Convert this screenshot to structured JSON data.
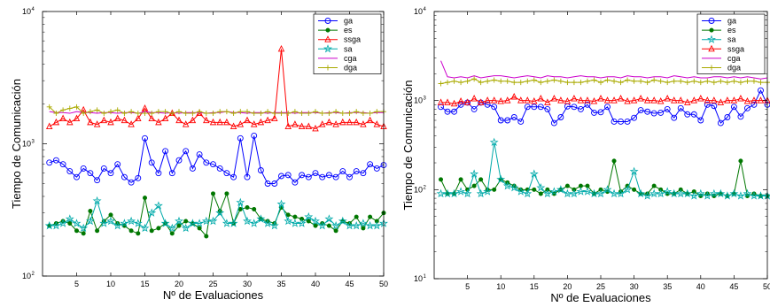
{
  "chart_data": [
    {
      "type": "line",
      "xlabel": "Nº de Evaluaciones",
      "ylabel": "Tiempo de Comunicación",
      "xlim": [
        0,
        50
      ],
      "ylim": [
        100,
        10000
      ],
      "yscale": "log",
      "x_ticks": [
        5,
        10,
        15,
        20,
        25,
        30,
        35,
        40,
        45,
        50
      ],
      "y_ticks": [
        {
          "value": 100,
          "base": "10",
          "exp": "2"
        },
        {
          "value": 1000,
          "base": "10",
          "exp": "3"
        },
        {
          "value": 10000,
          "base": "10",
          "exp": "4"
        }
      ],
      "grid": false,
      "legend_position": "top-right",
      "x": [
        1,
        2,
        3,
        4,
        5,
        6,
        7,
        8,
        9,
        10,
        11,
        12,
        13,
        14,
        15,
        16,
        17,
        18,
        19,
        20,
        21,
        22,
        23,
        24,
        25,
        26,
        27,
        28,
        29,
        30,
        31,
        32,
        33,
        34,
        35,
        36,
        37,
        38,
        39,
        40,
        41,
        42,
        43,
        44,
        45,
        46,
        47,
        48,
        49,
        50
      ],
      "series": [
        {
          "name": "ga",
          "color": "#0000ff",
          "marker": "circle",
          "values": [
            720,
            750,
            700,
            620,
            560,
            650,
            600,
            530,
            650,
            600,
            700,
            560,
            510,
            550,
            1100,
            720,
            600,
            880,
            600,
            750,
            880,
            650,
            830,
            720,
            700,
            650,
            600,
            560,
            1100,
            560,
            1150,
            630,
            500,
            500,
            570,
            580,
            510,
            580,
            560,
            600,
            560,
            580,
            560,
            620,
            560,
            620,
            600,
            700,
            650,
            690
          ]
        },
        {
          "name": "es",
          "color": "#007700",
          "marker": "star",
          "values": [
            240,
            250,
            260,
            250,
            220,
            210,
            310,
            220,
            260,
            290,
            250,
            240,
            220,
            210,
            390,
            220,
            230,
            250,
            210,
            240,
            260,
            250,
            230,
            200,
            420,
            310,
            420,
            250,
            320,
            330,
            320,
            270,
            260,
            250,
            330,
            290,
            280,
            270,
            260,
            240,
            250,
            240,
            220,
            260,
            250,
            280,
            230,
            280,
            260,
            300
          ]
        },
        {
          "name": "ssga",
          "color": "#ff0000",
          "marker": "triangle",
          "values": [
            1350,
            1450,
            1550,
            1450,
            1550,
            1800,
            1450,
            1400,
            1500,
            1450,
            1550,
            1500,
            1400,
            1550,
            1850,
            1550,
            1450,
            1550,
            1700,
            1500,
            1400,
            1500,
            1700,
            1500,
            1450,
            1450,
            1450,
            1350,
            1400,
            1500,
            1400,
            1450,
            1500,
            1550,
            5200,
            1350,
            1400,
            1350,
            1350,
            1300,
            1400,
            1450,
            1400,
            1450,
            1450,
            1450,
            1400,
            1500,
            1400,
            1350
          ]
        },
        {
          "name": "sa",
          "color": "#00aaaa",
          "marker": "pentagram",
          "values": [
            240,
            240,
            250,
            270,
            250,
            230,
            260,
            370,
            250,
            260,
            240,
            250,
            260,
            250,
            230,
            300,
            340,
            250,
            230,
            260,
            230,
            250,
            250,
            260,
            260,
            300,
            250,
            250,
            360,
            260,
            250,
            270,
            250,
            240,
            350,
            260,
            250,
            250,
            280,
            260,
            240,
            270,
            240,
            260,
            240,
            240,
            250,
            240,
            240,
            250
          ]
        },
        {
          "name": "cga",
          "color": "#cc00cc",
          "marker": "none",
          "values": [
            1750,
            1720,
            1720,
            1700,
            1750,
            1720,
            1720,
            1700,
            1720,
            1720,
            1700,
            1720,
            1720,
            1700,
            1750,
            1720,
            1720,
            1700,
            1720,
            1700,
            1720,
            1720,
            1720,
            1700,
            1720,
            1720,
            1750,
            1720,
            1720,
            1700,
            1720,
            1720,
            1700,
            1720,
            1720,
            1720,
            1700,
            1720,
            1720,
            1720,
            1700,
            1720,
            1720,
            1700,
            1720,
            1720,
            1720,
            1700,
            1720,
            1720
          ]
        },
        {
          "name": "dga",
          "color": "#aaaa00",
          "marker": "plus",
          "values": [
            1900,
            1700,
            1800,
            1850,
            1900,
            1700,
            1750,
            1800,
            1700,
            1750,
            1800,
            1700,
            1750,
            1700,
            1700,
            1700,
            1750,
            1750,
            1700,
            1750,
            1700,
            1700,
            1750,
            1700,
            1700,
            1750,
            1750,
            1700,
            1750,
            1750,
            1700,
            1700,
            1750,
            1700,
            1700,
            1700,
            1750,
            1700,
            1700,
            1750,
            1700,
            1700,
            1750,
            1700,
            1700,
            1750,
            1700,
            1700,
            1750,
            1750
          ]
        }
      ]
    },
    {
      "type": "line",
      "xlabel": "Nº de Evaluaciones",
      "ylabel": "Tiempo de Comunicación",
      "xlim": [
        0,
        50
      ],
      "ylim": [
        10,
        10000
      ],
      "yscale": "log",
      "x_ticks": [
        5,
        10,
        15,
        20,
        25,
        30,
        35,
        40,
        45,
        50
      ],
      "y_ticks": [
        {
          "value": 10,
          "base": "10",
          "exp": "1"
        },
        {
          "value": 100,
          "base": "10",
          "exp": "2"
        },
        {
          "value": 1000,
          "base": "10",
          "exp": "3"
        },
        {
          "value": 10000,
          "base": "10",
          "exp": "4"
        }
      ],
      "grid": false,
      "legend_position": "top-right",
      "x": [
        1,
        2,
        3,
        4,
        5,
        6,
        7,
        8,
        9,
        10,
        11,
        12,
        13,
        14,
        15,
        16,
        17,
        18,
        19,
        20,
        21,
        22,
        23,
        24,
        25,
        26,
        27,
        28,
        29,
        30,
        31,
        32,
        33,
        34,
        35,
        36,
        37,
        38,
        39,
        40,
        41,
        42,
        43,
        44,
        45,
        46,
        47,
        48,
        49,
        50
      ],
      "series": [
        {
          "name": "ga",
          "color": "#0000ff",
          "marker": "circle",
          "values": [
            850,
            750,
            750,
            900,
            950,
            800,
            950,
            900,
            850,
            600,
            600,
            650,
            580,
            850,
            850,
            850,
            800,
            560,
            650,
            860,
            850,
            800,
            900,
            730,
            740,
            850,
            580,
            580,
            580,
            640,
            780,
            750,
            720,
            730,
            800,
            640,
            820,
            700,
            700,
            600,
            900,
            870,
            560,
            650,
            850,
            660,
            820,
            900,
            1300,
            900
          ]
        },
        {
          "name": "es",
          "color": "#007700",
          "marker": "star",
          "values": [
            130,
            90,
            90,
            130,
            100,
            110,
            130,
            100,
            100,
            130,
            120,
            110,
            100,
            100,
            100,
            90,
            100,
            90,
            100,
            110,
            100,
            110,
            110,
            90,
            100,
            95,
            210,
            95,
            110,
            100,
            90,
            90,
            110,
            100,
            90,
            90,
            100,
            90,
            95,
            85,
            90,
            85,
            90,
            85,
            90,
            210,
            85,
            90,
            85,
            85
          ]
        },
        {
          "name": "sa",
          "color": "#00aaaa",
          "marker": "pentagram",
          "values": [
            90,
            90,
            90,
            95,
            90,
            150,
            90,
            95,
            340,
            130,
            110,
            105,
            95,
            90,
            150,
            105,
            90,
            95,
            100,
            90,
            90,
            95,
            95,
            90,
            90,
            100,
            90,
            90,
            100,
            160,
            90,
            85,
            90,
            90,
            95,
            90,
            90,
            90,
            85,
            90,
            85,
            90,
            90,
            85,
            90,
            85,
            90,
            85,
            85,
            85
          ]
        },
        {
          "name": "ssga",
          "color": "#ff0000",
          "marker": "triangle",
          "values": [
            950,
            950,
            920,
            980,
            950,
            1050,
            950,
            1000,
            1000,
            980,
            1000,
            1100,
            1000,
            1000,
            980,
            1050,
            950,
            1050,
            1000,
            980,
            1050,
            1000,
            1000,
            980,
            1050,
            1000,
            1000,
            1050,
            980,
            1000,
            1050,
            1000,
            1000,
            980,
            1050,
            1000,
            1000,
            950,
            1000,
            1050,
            1000,
            1000,
            950,
            1000,
            1000,
            1050,
            980,
            1000,
            1000,
            1000
          ]
        },
        {
          "name": "cga",
          "color": "#cc00cc",
          "marker": "none",
          "values": [
            2800,
            1850,
            1800,
            1850,
            1800,
            1900,
            1800,
            1850,
            1900,
            1900,
            1850,
            1800,
            1850,
            1900,
            1850,
            1800,
            1900,
            1850,
            1850,
            1800,
            1850,
            1900,
            1850,
            1850,
            1800,
            1850,
            1850,
            1800,
            1900,
            1850,
            1850,
            1800,
            1850,
            1850,
            1800,
            1900,
            1850,
            1800,
            1850,
            1800,
            1800,
            1850,
            1850,
            1800,
            1850,
            1800,
            1850,
            1800,
            1750,
            1800
          ]
        },
        {
          "name": "dga",
          "color": "#aaaa00",
          "marker": "plus",
          "values": [
            1550,
            1600,
            1650,
            1600,
            1650,
            1750,
            1600,
            1650,
            1700,
            1650,
            1650,
            1600,
            1600,
            1650,
            1700,
            1600,
            1650,
            1700,
            1650,
            1600,
            1600,
            1600,
            1650,
            1700,
            1600,
            1700,
            1650,
            1600,
            1700,
            1650,
            1650,
            1600,
            1700,
            1650,
            1600,
            1650,
            1650,
            1600,
            1650,
            1600,
            1650,
            1600,
            1650,
            1600,
            1650,
            1600,
            1650,
            1650,
            1600,
            1600
          ]
        }
      ]
    }
  ]
}
